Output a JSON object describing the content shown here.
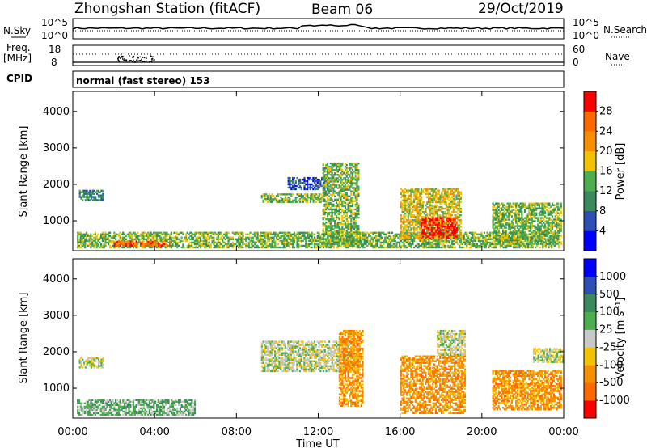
{
  "header": {
    "station": "Zhongshan Station (fitACF)",
    "beam": "Beam 06",
    "date": "29/Oct/2019"
  },
  "panels": {
    "nsky": {
      "left_label": "N.Sky",
      "right_label": "N.Search",
      "left_ticks": [
        "10^5",
        "10^0"
      ],
      "right_ticks": [
        "10^5",
        "10^0"
      ]
    },
    "freq": {
      "left_label_1": "Freq.",
      "left_label_2": "[MHz]",
      "right_label": "Nave",
      "left_ticks": [
        "18",
        "8"
      ],
      "right_ticks": [
        "60",
        "0"
      ]
    },
    "cpid": {
      "label": "CPID",
      "mode": "normal (fast stereo) 153"
    }
  },
  "chart_data": [
    {
      "type": "heatmap",
      "title": "Power",
      "ylabel": "Slant Range [km]",
      "ylim": [
        180,
        4550
      ],
      "yticks": [
        "4000",
        "3000",
        "2000",
        "1000"
      ],
      "colorbar": {
        "label": "Power [dB]",
        "ticks": [
          "28",
          "24",
          "20",
          "16",
          "12",
          "8",
          "4"
        ],
        "colors": [
          "#0000ff",
          "#2e4fb6",
          "#3b8a5c",
          "#4cae4c",
          "#f2c200",
          "#f58f00",
          "#ff6a00",
          "#ff0000"
        ]
      },
      "regions": [
        {
          "t0": 0.2,
          "t1": 23.8,
          "r0": 250,
          "r1": 700,
          "level": 3
        },
        {
          "t0": 2.0,
          "t1": 4.8,
          "r0": 300,
          "r1": 450,
          "level": 6
        },
        {
          "t0": 0.3,
          "t1": 1.5,
          "r0": 1550,
          "r1": 1850,
          "level": 2
        },
        {
          "t0": 9.2,
          "t1": 12.3,
          "r0": 1500,
          "r1": 1750,
          "level": 3
        },
        {
          "t0": 10.5,
          "t1": 12.5,
          "r0": 1850,
          "r1": 2200,
          "level": 1
        },
        {
          "t0": 16.0,
          "t1": 19.0,
          "r0": 500,
          "r1": 1900,
          "level": 4
        },
        {
          "t0": 17.0,
          "t1": 18.8,
          "r0": 500,
          "r1": 1100,
          "level": 7
        },
        {
          "t0": 20.5,
          "t1": 23.9,
          "r0": 350,
          "r1": 1500,
          "level": 3
        },
        {
          "t0": 12.2,
          "t1": 14.0,
          "r0": 300,
          "r1": 2600,
          "level": 3
        }
      ]
    },
    {
      "type": "heatmap",
      "title": "Velocity",
      "ylabel": "Slant Range [km]",
      "ylim": [
        180,
        4550
      ],
      "yticks": [
        "4000",
        "3000",
        "2000",
        "1000"
      ],
      "colorbar": {
        "label": "Velocity [m s⁻¹]",
        "ticks": [
          "1000",
          "500",
          "100",
          "25",
          "-25",
          "-100",
          "-500",
          "-1000"
        ],
        "colors": [
          "#ff0000",
          "#ff6a00",
          "#f58f00",
          "#f2c200",
          "#c8c8c8",
          "#4cae4c",
          "#3b8a5c",
          "#2e4fb6",
          "#0000ff"
        ]
      },
      "regions": [
        {
          "t0": 0.2,
          "t1": 6.0,
          "r0": 250,
          "r1": 700,
          "level": 5
        },
        {
          "t0": 0.3,
          "t1": 1.5,
          "r0": 1550,
          "r1": 1850,
          "level": 4
        },
        {
          "t0": 9.2,
          "t1": 14.0,
          "r0": 1450,
          "r1": 2300,
          "level": 4
        },
        {
          "t0": 13.0,
          "t1": 14.2,
          "r0": 500,
          "r1": 2600,
          "level": 2
        },
        {
          "t0": 16.0,
          "t1": 19.2,
          "r0": 300,
          "r1": 1900,
          "level": 2
        },
        {
          "t0": 17.8,
          "t1": 19.2,
          "r0": 1900,
          "r1": 2600,
          "level": 4
        },
        {
          "t0": 20.5,
          "t1": 23.9,
          "r0": 400,
          "r1": 1500,
          "level": 2
        },
        {
          "t0": 22.5,
          "t1": 24.0,
          "r0": 1700,
          "r1": 2100,
          "level": 4
        }
      ]
    }
  ],
  "time_axis": {
    "xlabel": "Time UT",
    "ticks": [
      "00:00",
      "04:00",
      "08:00",
      "12:00",
      "16:00",
      "20:00",
      "00:00"
    ]
  }
}
